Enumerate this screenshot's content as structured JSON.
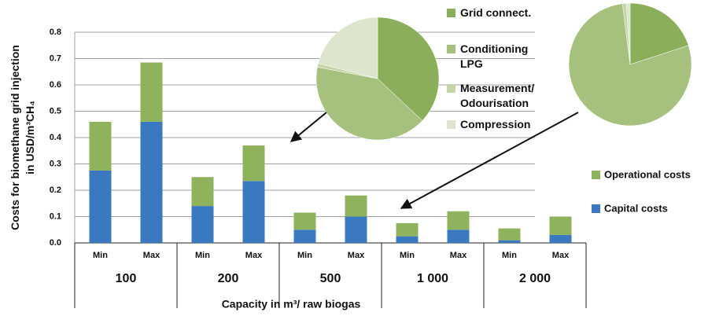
{
  "chart_data": [
    {
      "type": "stacked_bar",
      "ylabel": [
        "Costs for biomethane grid injection",
        "in USD/m³CH₄"
      ],
      "xlabel": "Capacity in m³/ raw biogas",
      "groups": [
        "100",
        "200",
        "500",
        "1 000",
        "2 000"
      ],
      "subcategories": [
        "Min",
        "Max",
        "Min",
        "Max",
        "Min",
        "Max",
        "Min",
        "Max",
        "Min",
        "Max"
      ],
      "series": [
        {
          "name": "Capital costs",
          "color": "#3a78c0",
          "values": [
            0.275,
            0.46,
            0.14,
            0.235,
            0.05,
            0.1,
            0.025,
            0.05,
            0.01,
            0.03
          ]
        },
        {
          "name": "Operational costs",
          "color": "#8fb35d",
          "values": [
            0.185,
            0.225,
            0.11,
            0.135,
            0.065,
            0.08,
            0.05,
            0.07,
            0.045,
            0.07
          ]
        }
      ],
      "ylim": [
        0,
        0.8
      ],
      "yticks": [
        {
          "value": 0,
          "label": "0.0"
        },
        0.1,
        0.2,
        0.3,
        0.4,
        0.5,
        0.6,
        0.7,
        0.8
      ],
      "grid": true
    },
    {
      "type": "pie",
      "categories": [
        "Grid connect.",
        "Conditioning LPG",
        "Measurement/ Odourisation",
        "Compression"
      ],
      "colors": [
        "#8aae5a",
        "#a6c17e",
        "#c5d6a9",
        "#dde5cc"
      ],
      "values": [
        37,
        41,
        1,
        21
      ]
    },
    {
      "type": "pie",
      "categories": [
        "Grid connect.",
        "Conditioning LPG",
        "Measurement/ Odourisation",
        "Compression"
      ],
      "colors": [
        "#8aae5a",
        "#a6c17e",
        "#c5d6a9",
        "#dde5cc"
      ],
      "values": [
        20,
        78,
        1,
        1
      ]
    }
  ]
}
